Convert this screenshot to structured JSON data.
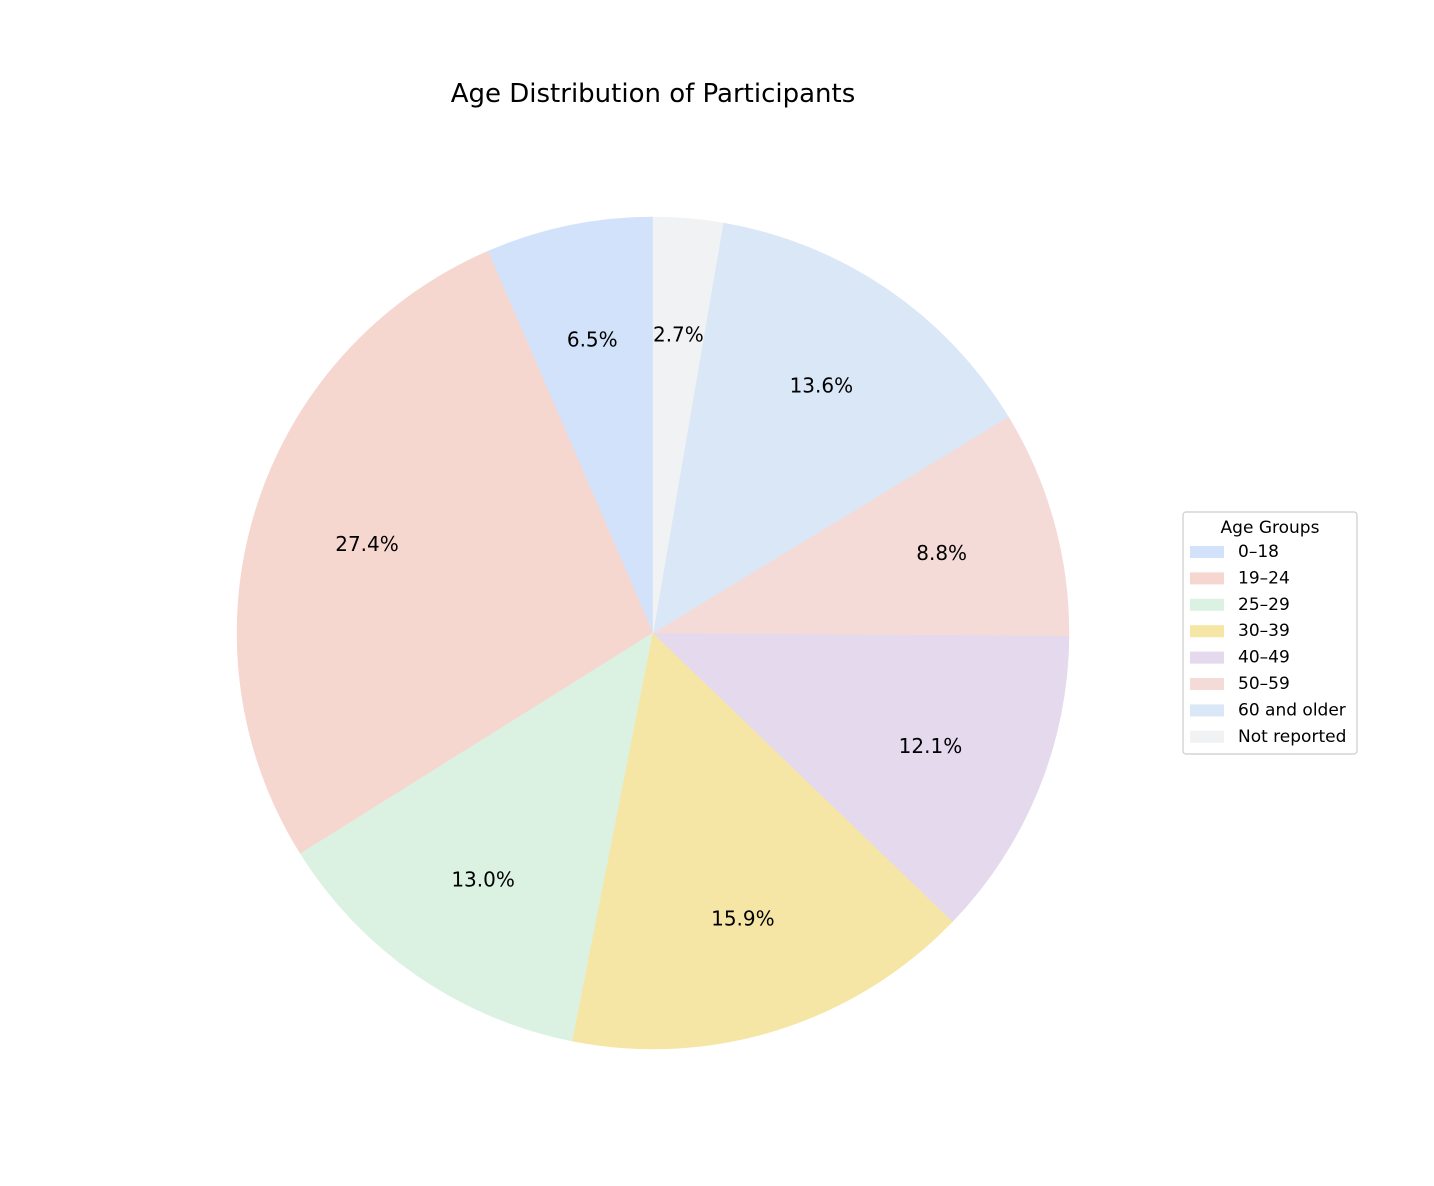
{
  "chart_data": {
    "type": "pie",
    "title": "Age Distribution of Participants",
    "legend_title": "Age Groups",
    "legend_position": "right",
    "start_angle_deg": 90,
    "direction": "clockwise",
    "categories": [
      "0–18",
      "19–24",
      "25–29",
      "30–39",
      "40–49",
      "50–59",
      "60 and older",
      "Not reported"
    ],
    "values": [
      6.5,
      27.4,
      13.0,
      15.9,
      12.1,
      8.8,
      13.6,
      2.7
    ],
    "labels": [
      "6.5%",
      "27.4%",
      "13.0%",
      "15.9%",
      "12.1%",
      "8.8%",
      "13.6%",
      "2.7%"
    ],
    "colors": [
      "#d1e2fa",
      "#f6d7d0",
      "#dbf2e3",
      "#f6e6a5",
      "#e4d9ed",
      "#f5dbd7",
      "#d9e7f6",
      "#f1f2f4"
    ]
  }
}
